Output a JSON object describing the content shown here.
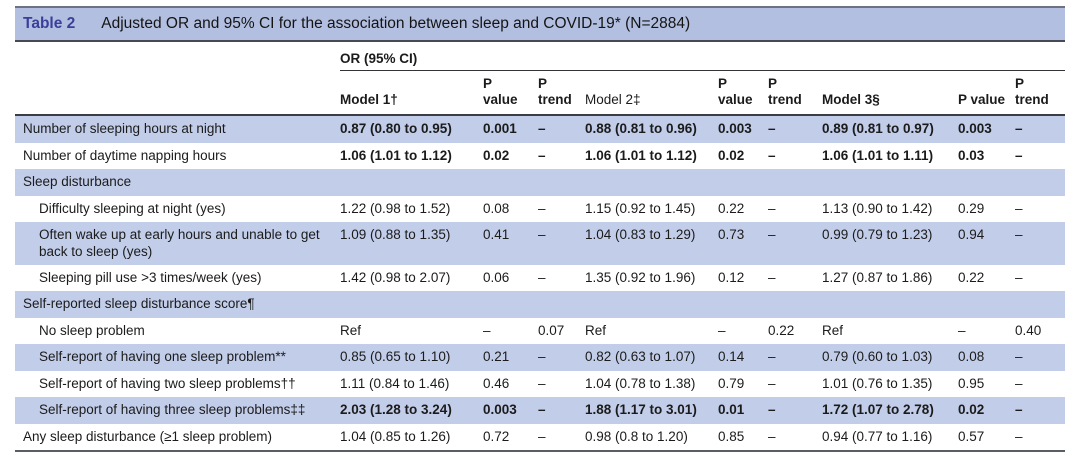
{
  "table": {
    "title": {
      "tag": "Table 2",
      "text": "Adjusted OR and 95% CI for the association between sleep and COVID-19* (N=2884)"
    },
    "group_header": "OR (95% CI)",
    "columns": [
      {
        "text": "",
        "bold": false
      },
      {
        "text": "Model 1†",
        "bold": true
      },
      {
        "text": "P\nvalue",
        "bold": true
      },
      {
        "text": "P\ntrend",
        "bold": true
      },
      {
        "text": "Model 2‡",
        "bold": false
      },
      {
        "text": "P\nvalue",
        "bold": true
      },
      {
        "text": "P\ntrend",
        "bold": true
      },
      {
        "text": "Model 3§",
        "bold": true
      },
      {
        "text": "P value",
        "bold": true
      },
      {
        "text": "P\ntrend",
        "bold": true
      }
    ],
    "rows": [
      {
        "label": "Number of sleeping hours at night",
        "indent": false,
        "shaded": true,
        "bold": true,
        "section": false,
        "cells": [
          "0.87 (0.80 to 0.95)",
          "0.001",
          "–",
          "0.88 (0.81 to 0.96)",
          "0.003",
          "–",
          "0.89 (0.81 to 0.97)",
          "0.003",
          "–"
        ]
      },
      {
        "label": "Number of daytime napping hours",
        "indent": false,
        "shaded": false,
        "bold": true,
        "section": false,
        "cells": [
          "1.06 (1.01 to 1.12)",
          "0.02",
          "–",
          "1.06 (1.01 to 1.12)",
          "0.02",
          "–",
          "1.06 (1.01 to 1.11)",
          "0.03",
          "–"
        ]
      },
      {
        "label": "Sleep disturbance",
        "indent": false,
        "shaded": true,
        "bold": false,
        "section": true,
        "cells": [
          "",
          "",
          "",
          "",
          "",
          "",
          "",
          "",
          ""
        ]
      },
      {
        "label": "Difficulty sleeping at night (yes)",
        "indent": true,
        "shaded": false,
        "bold": false,
        "section": false,
        "cells": [
          "1.22 (0.98 to 1.52)",
          "0.08",
          "–",
          "1.15 (0.92 to 1.45)",
          "0.22",
          "–",
          "1.13 (0.90 to 1.42)",
          "0.29",
          "–"
        ]
      },
      {
        "label": "Often wake up at early hours and unable to get back to sleep (yes)",
        "indent": true,
        "shaded": true,
        "bold": false,
        "section": false,
        "cells": [
          "1.09 (0.88 to 1.35)",
          "0.41",
          "–",
          "1.04 (0.83 to 1.29)",
          "0.73",
          "–",
          "0.99 (0.79 to 1.23)",
          "0.94",
          "–"
        ]
      },
      {
        "label": "Sleeping pill use >3 times/week (yes)",
        "indent": true,
        "shaded": false,
        "bold": false,
        "section": false,
        "cells": [
          "1.42 (0.98 to 2.07)",
          "0.06",
          "–",
          "1.35 (0.92 to 1.96)",
          "0.12",
          "–",
          "1.27 (0.87 to 1.86)",
          "0.22",
          "–"
        ]
      },
      {
        "label": "Self-reported sleep disturbance score¶",
        "indent": false,
        "shaded": true,
        "bold": false,
        "section": true,
        "cells": [
          "",
          "",
          "",
          "",
          "",
          "",
          "",
          "",
          ""
        ]
      },
      {
        "label": "No sleep problem",
        "indent": true,
        "shaded": false,
        "bold": false,
        "section": false,
        "cells": [
          "Ref",
          "–",
          "0.07",
          "Ref",
          "–",
          "0.22",
          "Ref",
          "–",
          "0.40"
        ]
      },
      {
        "label": "Self-report of having one sleep problem**",
        "indent": true,
        "shaded": true,
        "bold": false,
        "section": false,
        "cells": [
          "0.85 (0.65 to 1.10)",
          "0.21",
          "–",
          "0.82 (0.63 to 1.07)",
          "0.14",
          "–",
          "0.79 (0.60 to 1.03)",
          "0.08",
          "–"
        ]
      },
      {
        "label": "Self-report of having two sleep problems††",
        "indent": true,
        "shaded": false,
        "bold": false,
        "section": false,
        "cells": [
          "1.11 (0.84 to 1.46)",
          "0.46",
          "–",
          "1.04 (0.78 to 1.38)",
          "0.79",
          "–",
          "1.01 (0.76 to 1.35)",
          "0.95",
          "–"
        ]
      },
      {
        "label": "Self-report of having three sleep problems‡‡",
        "indent": true,
        "shaded": true,
        "bold": true,
        "section": false,
        "cells": [
          "2.03 (1.28 to 3.24)",
          "0.003",
          "–",
          "1.88 (1.17 to 3.01)",
          "0.01",
          "–",
          "1.72 (1.07 to 2.78)",
          "0.02",
          "–"
        ]
      },
      {
        "label": "Any sleep disturbance (≥1 sleep problem)",
        "indent": false,
        "shaded": false,
        "bold": false,
        "section": false,
        "cells": [
          "1.04 (0.85 to 1.26)",
          "0.72",
          "–",
          "0.98 (0.8 to 1.20)",
          "0.85",
          "–",
          "0.94 (0.77 to 1.16)",
          "0.57",
          "–"
        ]
      }
    ],
    "colors": {
      "title_bar_bg": "#b3bfe0",
      "shaded_row_bg": "#c2cde9",
      "table_tag_color": "#3c3f99",
      "rule_dark": "#3b3d44"
    }
  }
}
